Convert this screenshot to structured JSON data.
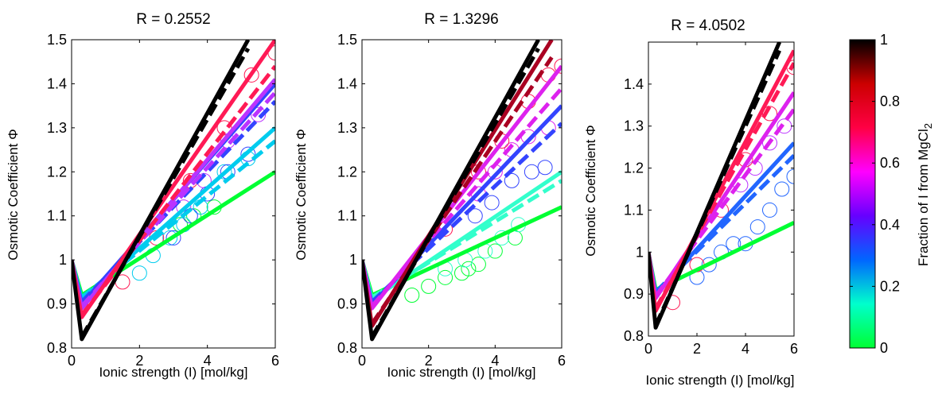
{
  "chart_data": [
    {
      "type": "line",
      "title": "R = 0.2552",
      "xlabel": "Ionic strength (I) [mol/kg]",
      "ylabel": "Osmotic Coefficient Φ",
      "xlim": [
        0,
        6
      ],
      "ylim": [
        0.8,
        1.5
      ],
      "xticks": [
        0,
        2,
        4,
        6
      ],
      "yticks": [
        0.8,
        0.9,
        1,
        1.1,
        1.2,
        1.3,
        1.4,
        1.5
      ],
      "ytick_labels": [
        "0.8",
        "0.9",
        "1",
        "1.1",
        "1.2",
        "1.3",
        "1.4",
        "1.5"
      ],
      "grid": false,
      "series": [
        {
          "fraction": 0.0,
          "color": "#00ff33",
          "y_min": 0.92,
          "y_end": 1.2,
          "x_end": 6,
          "dash_dy": 0.0
        },
        {
          "fraction": 0.2,
          "color": "#00ccee",
          "y_min": 0.91,
          "y_end": 1.3,
          "x_end": 6,
          "dash_dy": -0.03
        },
        {
          "fraction": 0.4,
          "color": "#3344ff",
          "y_min": 0.9,
          "y_end": 1.4,
          "x_end": 6,
          "dash_dy": -0.04
        },
        {
          "fraction": 0.6,
          "color": "#bb33ff",
          "y_min": 0.89,
          "y_end": 1.41,
          "x_end": 6,
          "dash_dy": -0.03
        },
        {
          "fraction": 0.8,
          "color": "#ff1a55",
          "y_min": 0.87,
          "y_end": 1.5,
          "x_end": 6,
          "dash_dy": -0.06
        },
        {
          "fraction": 1.0,
          "color": "#000000",
          "y_min": 0.82,
          "y_end": 1.5,
          "x_end": 5.2,
          "dash_dy": -0.02
        }
      ],
      "measured": [
        {
          "color": "#00ff33",
          "points": [
            [
              3.2,
              1.08
            ],
            [
              3.6,
              1.1
            ],
            [
              4.2,
              1.12
            ]
          ]
        },
        {
          "color": "#00ccee",
          "points": [
            [
              2.0,
              0.97
            ],
            [
              2.4,
              1.01
            ],
            [
              2.9,
              1.05
            ],
            [
              3.3,
              1.08
            ],
            [
              3.8,
              1.12
            ],
            [
              4.5,
              1.2
            ],
            [
              5.2,
              1.23
            ]
          ]
        },
        {
          "color": "#3344ff",
          "points": [
            [
              3.0,
              1.05
            ],
            [
              3.5,
              1.1
            ],
            [
              4.0,
              1.15
            ],
            [
              4.6,
              1.2
            ],
            [
              5.2,
              1.24
            ]
          ]
        },
        {
          "color": "#bb33ff",
          "points": [
            [
              3.3,
              1.12
            ],
            [
              3.9,
              1.18
            ],
            [
              4.6,
              1.27
            ],
            [
              5.5,
              1.33
            ]
          ]
        },
        {
          "color": "#ff1a55",
          "points": [
            [
              1.5,
              0.95
            ],
            [
              2.5,
              1.05
            ],
            [
              3.5,
              1.18
            ],
            [
              4.5,
              1.3
            ],
            [
              5.3,
              1.42
            ],
            [
              6.0,
              1.47
            ]
          ]
        }
      ]
    },
    {
      "type": "line",
      "title": "R = 1.3296",
      "xlabel": "Ionic strength (I) [mol/kg]",
      "ylabel": "Osmotic Coefficient Φ",
      "xlim": [
        0,
        6
      ],
      "ylim": [
        0.8,
        1.5
      ],
      "xticks": [
        0,
        2,
        4,
        6
      ],
      "yticks": [
        0.8,
        0.9,
        1,
        1.1,
        1.2,
        1.3,
        1.4,
        1.5
      ],
      "ytick_labels": [
        "0.8",
        "0.9",
        "1",
        "1.1",
        "1.2",
        "1.3",
        "1.4",
        "1.5"
      ],
      "grid": false,
      "series": [
        {
          "fraction": 0.0,
          "color": "#00ff33",
          "y_min": 0.92,
          "y_end": 1.12,
          "x_end": 6,
          "dash_dy": 0.0
        },
        {
          "fraction": 0.2,
          "color": "#33ffcc",
          "y_min": 0.91,
          "y_end": 1.2,
          "x_end": 6,
          "dash_dy": -0.02
        },
        {
          "fraction": 0.4,
          "color": "#3344ff",
          "y_min": 0.9,
          "y_end": 1.35,
          "x_end": 6,
          "dash_dy": -0.04
        },
        {
          "fraction": 0.6,
          "color": "#dd22ee",
          "y_min": 0.89,
          "y_end": 1.44,
          "x_end": 6,
          "dash_dy": -0.05
        },
        {
          "fraction": 0.8,
          "color": "#aa0022",
          "y_min": 0.85,
          "y_end": 1.5,
          "x_end": 5.7,
          "dash_dy": -0.04
        },
        {
          "fraction": 1.0,
          "color": "#000000",
          "y_min": 0.82,
          "y_end": 1.5,
          "x_end": 5.3,
          "dash_dy": -0.02
        }
      ],
      "measured": [
        {
          "color": "#00ff33",
          "points": [
            [
              1.5,
              0.92
            ],
            [
              2.0,
              0.94
            ],
            [
              2.5,
              0.96
            ],
            [
              3.0,
              0.97
            ],
            [
              3.2,
              0.98
            ],
            [
              3.5,
              0.99
            ],
            [
              4.0,
              1.02
            ],
            [
              4.6,
              1.05
            ]
          ]
        },
        {
          "color": "#33ffcc",
          "points": [
            [
              2.5,
              0.98
            ],
            [
              3.1,
              1.0
            ],
            [
              3.7,
              1.02
            ],
            [
              4.2,
              1.05
            ],
            [
              4.7,
              1.08
            ]
          ]
        },
        {
          "color": "#3344ff",
          "points": [
            [
              3.4,
              1.1
            ],
            [
              3.9,
              1.13
            ],
            [
              4.5,
              1.18
            ],
            [
              5.1,
              1.2
            ],
            [
              5.5,
              1.21
            ]
          ]
        },
        {
          "color": "#dd22ee",
          "points": [
            [
              3.5,
              1.15
            ],
            [
              4.0,
              1.2
            ],
            [
              4.5,
              1.25
            ],
            [
              5.0,
              1.28
            ],
            [
              5.6,
              1.3
            ]
          ]
        },
        {
          "color": "#ff1a55",
          "points": [
            [
              2.5,
              1.07
            ],
            [
              3.5,
              1.2
            ],
            [
              4.2,
              1.27
            ],
            [
              5.0,
              1.36
            ],
            [
              5.6,
              1.42
            ],
            [
              6.0,
              1.44
            ]
          ]
        }
      ]
    },
    {
      "type": "line",
      "title": "R = 4.0502",
      "xlabel": "Ionic strength (I) [mol/kg]",
      "ylabel": "Osmotic Coefficient Φ",
      "xlim": [
        0,
        6
      ],
      "ylim": [
        0.8,
        1.5
      ],
      "xticks": [
        0,
        2,
        4,
        6
      ],
      "yticks": [
        0.8,
        0.9,
        1,
        1.1,
        1.2,
        1.3,
        1.4
      ],
      "ytick_labels": [
        "0.8",
        "0.9",
        "1",
        "1.1",
        "1.2",
        "1.3",
        "1.4"
      ],
      "grid": false,
      "series": [
        {
          "fraction": 0.0,
          "color": "#00ff33",
          "y_min": 0.91,
          "y_end": 1.07,
          "x_end": 6,
          "dash_dy": 0.0
        },
        {
          "fraction": 0.4,
          "color": "#2266ff",
          "y_min": 0.9,
          "y_end": 1.26,
          "x_end": 6,
          "dash_dy": -0.03
        },
        {
          "fraction": 0.6,
          "color": "#dd22ee",
          "y_min": 0.89,
          "y_end": 1.38,
          "x_end": 6,
          "dash_dy": -0.04
        },
        {
          "fraction": 0.8,
          "color": "#ff1a55",
          "y_min": 0.86,
          "y_end": 1.48,
          "x_end": 6,
          "dash_dy": -0.03
        },
        {
          "fraction": 1.0,
          "color": "#000000",
          "y_min": 0.82,
          "y_end": 1.5,
          "x_end": 5.4,
          "dash_dy": -0.02
        }
      ],
      "measured": [
        {
          "color": "#2266ff",
          "points": [
            [
              2.0,
              0.94
            ],
            [
              2.5,
              0.97
            ],
            [
              3.0,
              1.0
            ],
            [
              3.5,
              1.02
            ],
            [
              4.0,
              1.02
            ],
            [
              4.5,
              1.06
            ],
            [
              5.0,
              1.1
            ],
            [
              5.5,
              1.15
            ],
            [
              6.0,
              1.18
            ]
          ]
        },
        {
          "color": "#bb33ff",
          "points": [
            [
              3.8,
              1.16
            ],
            [
              4.4,
              1.2
            ],
            [
              5.0,
              1.26
            ],
            [
              5.6,
              1.3
            ]
          ]
        },
        {
          "color": "#ff1a55",
          "points": [
            [
              1.0,
              0.88
            ],
            [
              2.0,
              0.97
            ],
            [
              3.0,
              1.1
            ],
            [
              4.0,
              1.22
            ],
            [
              5.0,
              1.33
            ],
            [
              6.0,
              1.44
            ]
          ]
        }
      ]
    }
  ],
  "colorbar": {
    "label": "Fraction of I from MgCl",
    "label_subscript": "2",
    "ticks": [
      "0",
      "0.2",
      "0.4",
      "0.6",
      "0.8",
      "1"
    ],
    "tick_values": [
      0,
      0.2,
      0.4,
      0.6,
      0.8,
      1
    ],
    "colors": [
      "#00ff33",
      "#00ffcc",
      "#0066ff",
      "#6600ff",
      "#ff00ff",
      "#ff0044",
      "#cc0000",
      "#000000"
    ]
  }
}
